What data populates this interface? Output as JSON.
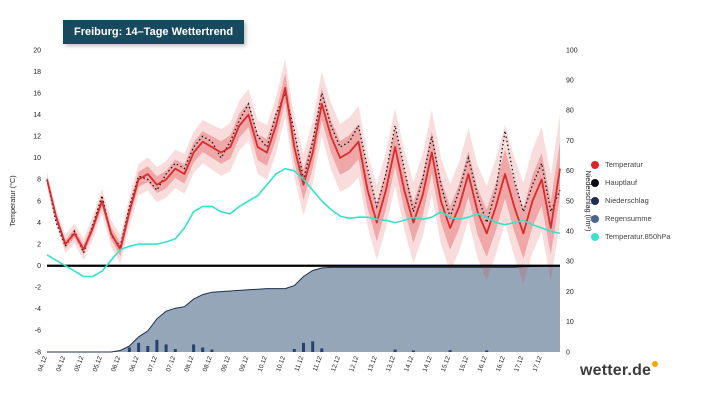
{
  "title": "Freiburg: 14–Tage Wettertrend",
  "logo": {
    "text": "wetter.de"
  },
  "legend": {
    "items": [
      {
        "label": "Temperatur",
        "color": "#e02424"
      },
      {
        "label": "Hauptlauf",
        "color": "#0c0c16"
      },
      {
        "label": "Niederschlag",
        "color": "#1c2f52"
      },
      {
        "label": "Regensumme",
        "color": "#49668c"
      },
      {
        "label": "Temperatur.850hPa",
        "color": "#38e5cc"
      }
    ]
  },
  "chart_data": {
    "type": "line",
    "title": "Freiburg: 14–Tage Wettertrend",
    "left_axis": {
      "label": "Temperatur (°C)",
      "range": [
        -8,
        20
      ],
      "ticks": [
        20,
        18,
        16,
        14,
        12,
        10,
        8,
        6,
        4,
        2,
        0,
        -2,
        -4,
        -6,
        -8
      ]
    },
    "right_axis": {
      "label": "Niederschlag (l/m²)",
      "range": [
        0,
        100
      ],
      "ticks": [
        100,
        90,
        80,
        70,
        60,
        50,
        40,
        30,
        20,
        10,
        0
      ]
    },
    "x_labels": [
      "04.12",
      "04.12",
      "05.12",
      "05.12",
      "06.12",
      "06.12",
      "07.12",
      "07.12",
      "08.12",
      "08.12",
      "09.12",
      "09.12",
      "10.12",
      "10.12",
      "11.12",
      "11.12",
      "12.12",
      "12.12",
      "13.12",
      "13.12",
      "14.12",
      "14.12",
      "15.12",
      "15.12",
      "16.12",
      "16.12",
      "17.12",
      "17.12"
    ],
    "points_per_day": 4,
    "series": {
      "temperatur": [
        8.0,
        4.5,
        2.0,
        3.0,
        1.5,
        3.5,
        6.0,
        3.0,
        1.5,
        5.0,
        8.0,
        8.5,
        7.5,
        8.0,
        9.0,
        8.5,
        10.5,
        11.5,
        11.0,
        10.5,
        11.0,
        13.0,
        14.0,
        11.0,
        10.5,
        13.0,
        16.5,
        11.0,
        7.5,
        10.5,
        15.0,
        12.0,
        10.0,
        10.5,
        11.5,
        7.0,
        4.0,
        7.0,
        11.0,
        7.0,
        4.0,
        6.5,
        10.5,
        6.0,
        3.5,
        5.5,
        8.5,
        5.0,
        3.0,
        5.5,
        8.5,
        5.5,
        3.0,
        6.0,
        8.0,
        3.5,
        9.0
      ],
      "hauptlauf": [
        8.0,
        4.0,
        1.8,
        3.2,
        1.2,
        3.8,
        6.5,
        2.8,
        1.8,
        5.5,
        8.3,
        8.0,
        7.0,
        8.5,
        9.5,
        9.0,
        11.0,
        12.0,
        11.5,
        10.0,
        11.5,
        13.5,
        15.0,
        12.0,
        11.0,
        14.0,
        16.0,
        12.5,
        8.0,
        11.5,
        16.0,
        13.0,
        11.0,
        11.5,
        13.0,
        9.0,
        5.5,
        8.5,
        13.0,
        9.0,
        5.0,
        8.0,
        12.0,
        7.5,
        4.5,
        7.0,
        10.0,
        6.5,
        4.0,
        7.0,
        12.5,
        8.0,
        5.0,
        7.5,
        9.5,
        5.0,
        7.0
      ],
      "temperatur_850hpa": [
        1.0,
        0.5,
        0.0,
        -0.5,
        -1.0,
        -1.0,
        -0.5,
        0.5,
        1.5,
        1.8,
        2.0,
        2.0,
        2.0,
        2.2,
        2.5,
        3.5,
        5.0,
        5.5,
        5.5,
        5.0,
        4.8,
        5.5,
        6.0,
        6.5,
        7.5,
        8.5,
        9.0,
        8.8,
        8.0,
        7.0,
        6.0,
        5.2,
        4.6,
        4.4,
        4.5,
        4.5,
        4.3,
        4.2,
        4.0,
        4.2,
        4.5,
        4.3,
        4.5,
        5.0,
        4.5,
        4.3,
        4.5,
        4.8,
        4.5,
        4.0,
        3.8,
        4.0,
        4.2,
        3.8,
        3.5,
        3.2,
        3.0
      ],
      "niederschlag_bars": [
        0,
        0,
        0,
        0,
        0,
        0,
        0,
        0,
        0,
        1.5,
        3,
        2,
        4,
        2.5,
        1,
        0,
        2.5,
        1.5,
        0.8,
        0,
        0,
        0,
        0,
        0,
        0,
        0,
        0,
        1,
        3,
        3.5,
        1.2,
        0,
        0,
        0,
        0,
        0,
        0,
        0,
        0.8,
        0,
        0.5,
        0,
        0,
        0,
        0.6,
        0,
        0,
        0,
        0.5,
        0,
        0,
        0,
        0,
        0,
        0,
        0,
        0
      ],
      "regensumme": [
        0,
        0,
        0,
        0,
        0,
        0,
        0,
        0,
        0.5,
        2,
        5,
        7,
        11,
        13.5,
        14.5,
        15,
        17.5,
        19,
        19.8,
        20,
        20.2,
        20.4,
        20.6,
        20.8,
        21,
        21,
        21,
        22,
        25,
        27,
        27.8,
        28,
        28,
        28,
        28,
        28,
        28,
        28,
        28,
        28,
        28,
        28,
        28,
        28,
        28,
        28,
        28,
        28,
        28,
        28,
        28,
        28,
        28.2,
        28.3,
        28.4,
        28.5,
        28.5
      ]
    },
    "uncertainty": {
      "outer_start": 0.7,
      "outer_end": 5.0,
      "inner_start": 0.3,
      "inner_end": 2.5
    },
    "colors": {
      "temperatur": "#d92b2b",
      "hauptlauf": "#15151f",
      "band_inner": "rgba(217,43,43,0.30)",
      "band_outer": "rgba(217,43,43,0.16)",
      "niederschlag": "#27406e",
      "regensumme_fill": "rgba(132,150,173,0.85)",
      "regensumme_edge": "#1d2e50",
      "temperatur_850hpa": "#35e3ca",
      "zero_line": "#000000",
      "axis_text": "#222222"
    }
  }
}
